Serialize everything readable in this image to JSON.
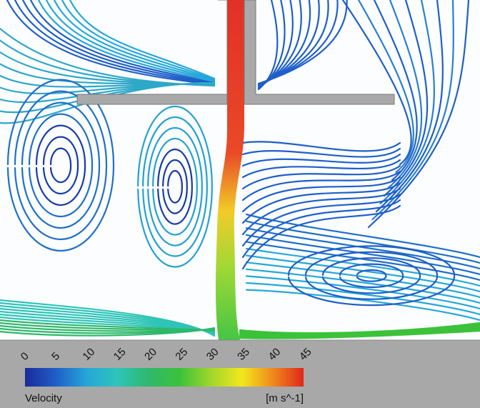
{
  "colorbar": {
    "label": "Velocity",
    "unit": "[m s^-1]",
    "ticks": [
      0,
      5,
      10,
      15,
      20,
      25,
      30,
      35,
      40,
      45
    ],
    "lim": [
      0,
      45
    ],
    "colors": [
      "#1a2a9c",
      "#1f5fc8",
      "#25a7d8",
      "#2ec4b8",
      "#2fb86a",
      "#3cc23a",
      "#9fd62a",
      "#f2e81c",
      "#f08a1c",
      "#e0261c"
    ]
  }
}
